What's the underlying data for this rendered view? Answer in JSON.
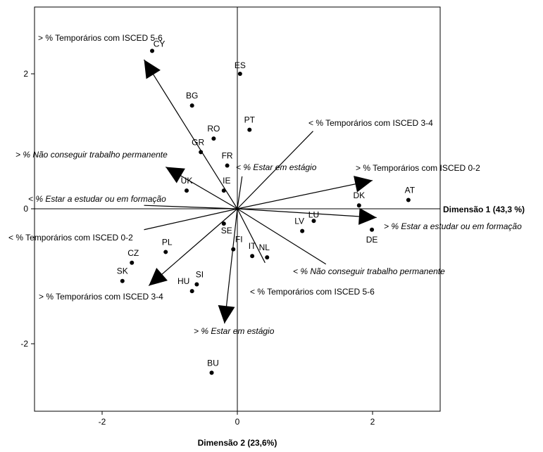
{
  "chart_data": {
    "type": "scatter",
    "xlabel": "Dimensão 1 (43,3 %)",
    "ylabel": "Dimensão 2 (23,6%)",
    "xlim": [
      -3.0,
      3.0
    ],
    "ylim": [
      -3.0,
      3.0
    ],
    "x_ticks": [
      {
        "value": -2,
        "label": "-2"
      },
      {
        "value": 0,
        "label": "0"
      },
      {
        "value": 2,
        "label": "2"
      }
    ],
    "y_ticks": [
      {
        "value": 2,
        "label": "2"
      },
      {
        "value": 0,
        "label": "0"
      },
      {
        "value": -2,
        "label": "-2"
      }
    ],
    "points": [
      {
        "label": "CY",
        "x": -1.26,
        "y": 2.34
      },
      {
        "label": "ES",
        "x": 0.04,
        "y": 2.0
      },
      {
        "label": "BG",
        "x": -0.67,
        "y": 1.53
      },
      {
        "label": "PT",
        "x": 0.18,
        "y": 1.17
      },
      {
        "label": "RO",
        "x": -0.35,
        "y": 1.04
      },
      {
        "label": "GR",
        "x": -0.54,
        "y": 0.84
      },
      {
        "label": "FR",
        "x": -0.15,
        "y": 0.64
      },
      {
        "label": "IE",
        "x": -0.2,
        "y": 0.27
      },
      {
        "label": "UK",
        "x": -0.75,
        "y": 0.27
      },
      {
        "label": "AT",
        "x": 2.53,
        "y": 0.13
      },
      {
        "label": "DK",
        "x": 1.8,
        "y": 0.05
      },
      {
        "label": "LU",
        "x": 1.13,
        "y": -0.18
      },
      {
        "label": "LV",
        "x": 0.96,
        "y": -0.33
      },
      {
        "label": "DE",
        "x": 1.99,
        "y": -0.31
      },
      {
        "label": "SE",
        "x": -0.2,
        "y": -0.22
      },
      {
        "label": "FI",
        "x": -0.06,
        "y": -0.6
      },
      {
        "label": "IT",
        "x": 0.22,
        "y": -0.7
      },
      {
        "label": "NL",
        "x": 0.44,
        "y": -0.72
      },
      {
        "label": "PL",
        "x": -1.06,
        "y": -0.64
      },
      {
        "label": "CZ",
        "x": -1.56,
        "y": -0.8
      },
      {
        "label": "SK",
        "x": -1.7,
        "y": -1.07
      },
      {
        "label": "SI",
        "x": -0.6,
        "y": -1.12
      },
      {
        "label": "HU",
        "x": -0.67,
        "y": -1.22
      },
      {
        "label": "BU",
        "x": -0.38,
        "y": -2.43
      }
    ],
    "vectors": [
      {
        "label": "> % Temporários com ISCED 5-6",
        "x": -1.38,
        "y": 2.21,
        "arrow": true
      },
      {
        "label": "> % Não conseguir trabalho permanente",
        "x": -1.06,
        "y": 0.62,
        "arrow": true
      },
      {
        "label": "< % Estar a estudar ou em formação",
        "x": -1.38,
        "y": 0.05,
        "arrow": false
      },
      {
        "label": "< % Temporários com ISCED 0-2",
        "x": -1.38,
        "y": -0.31,
        "arrow": false
      },
      {
        "label": "> % Temporários com ISCED 3-4",
        "x": -1.31,
        "y": -1.14,
        "arrow": true
      },
      {
        "label": "> % Estar em estágio",
        "x": -0.19,
        "y": -1.7,
        "arrow": true
      },
      {
        "label": "< % Estar em estágio",
        "x": 0.07,
        "y": 0.48,
        "arrow": false
      },
      {
        "label": "< % Temporários com ISCED 3-4",
        "x": 1.12,
        "y": 1.15,
        "arrow": false
      },
      {
        "label": "> % Temporários com ISCED 0-2",
        "x": 2.0,
        "y": 0.42,
        "arrow": true
      },
      {
        "label": "> % Estar a estudar ou em formação",
        "x": 2.06,
        "y": -0.13,
        "arrow": true
      },
      {
        "label": "< % Não conseguir trabalho permanente",
        "x": 1.31,
        "y": -0.82,
        "arrow": false
      },
      {
        "label": "< % Temporários com ISCED 5-6",
        "x": 0.41,
        "y": -0.8,
        "arrow": false
      }
    ]
  }
}
